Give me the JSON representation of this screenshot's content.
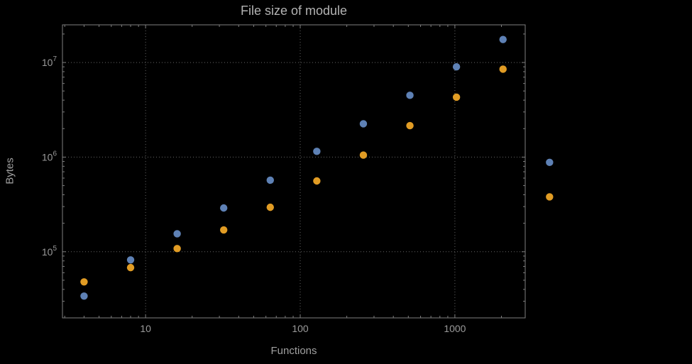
{
  "chart_data": {
    "type": "scatter",
    "title": "File size of module",
    "xlabel": "Functions",
    "ylabel": "Bytes",
    "x_scale": "log",
    "y_scale": "log",
    "xlim": [
      2.9,
      2850
    ],
    "ylim": [
      20000,
      25000000
    ],
    "grid": true,
    "grid_style": "dotted",
    "legend": "none",
    "x_gridlines": [
      10,
      100,
      1000
    ],
    "y_gridlines": [
      100000,
      1000000,
      10000000
    ],
    "x_tick_labels": [
      "10",
      "100",
      "1000"
    ],
    "y_tick_exponents": [
      "5",
      "6",
      "7"
    ],
    "series": [
      {
        "name": "series-blue",
        "color": "#5e81b5",
        "x": [
          4,
          8,
          16,
          32,
          64,
          128,
          256,
          512,
          1024,
          2048,
          4096
        ],
        "y": [
          34000,
          82000,
          155000,
          290000,
          570000,
          1150000,
          2250000,
          4500000,
          9000000,
          17500000,
          880000
        ]
      },
      {
        "name": "series-orange",
        "color": "#e19c24",
        "x": [
          4,
          8,
          16,
          32,
          64,
          128,
          256,
          512,
          1024,
          2048,
          4096
        ],
        "y": [
          48000,
          68000,
          108000,
          170000,
          295000,
          560000,
          1050000,
          2150000,
          4300000,
          8500000,
          380000
        ]
      }
    ],
    "colors": {
      "background": "#000000",
      "frame": "#7f7f7f",
      "grid": "#666666",
      "title_text": "#b3b3b3",
      "label_text": "#a0a0a0",
      "tick_text": "#9a9a9a"
    }
  }
}
